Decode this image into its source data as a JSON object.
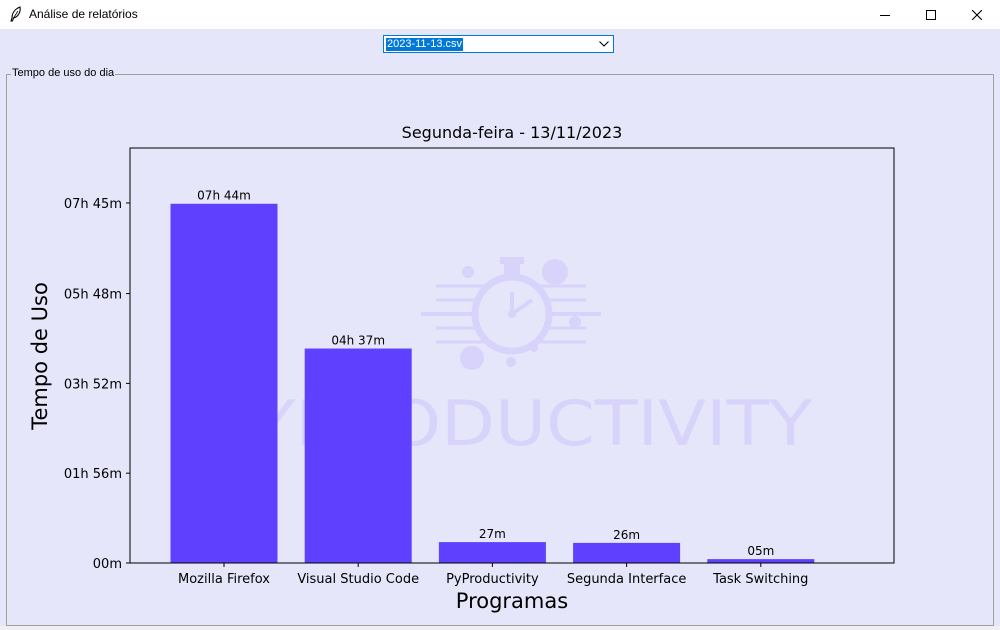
{
  "window": {
    "title": "Análise de relatórios",
    "app_icon": "feather-icon",
    "controls": [
      "minimize-icon",
      "maximize-icon",
      "close-icon"
    ]
  },
  "file_select": {
    "selected": "2023-11-13.csv"
  },
  "group": {
    "label": "Tempo de uso do dia"
  },
  "watermark": {
    "text": "PYPRODUCTIVITY",
    "icon": "stopwatch-icon",
    "color": "#d7d3fb"
  },
  "colors": {
    "bar": "#6040ff",
    "accent": "#0078d7",
    "background": "#e6e6fa"
  },
  "chart_data": {
    "type": "bar",
    "title": "Segunda-feira - 13/11/2023",
    "xlabel": "Programas",
    "ylabel": "Tempo de Uso",
    "categories": [
      "Mozilla Firefox",
      "Visual Studio Code",
      "PyProductivity",
      "Segunda Interface",
      "Task Switching"
    ],
    "values": [
      464,
      277,
      27,
      26,
      5
    ],
    "value_unit": "minutes",
    "data_labels": [
      "07h 44m",
      "04h 37m",
      "27m",
      "26m",
      "05m"
    ],
    "ylim": [
      0,
      536
    ],
    "yticks": [
      0,
      116,
      232,
      348,
      465
    ],
    "ytick_labels": [
      "00m",
      "01h 56m",
      "03h 52m",
      "05h 48m",
      "07h 45m"
    ],
    "grid": false,
    "legend": false
  }
}
